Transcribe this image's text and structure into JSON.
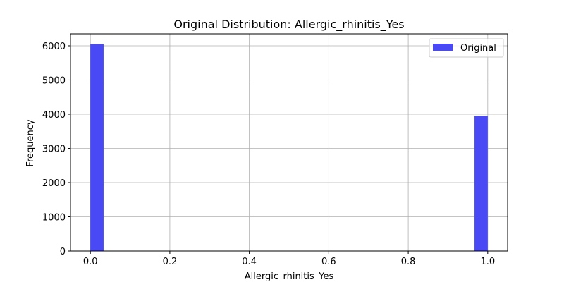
{
  "chart_data": {
    "type": "bar",
    "title": "Original Distribution: Allergic_rhinitis_Yes",
    "xlabel": "Allergic_rhinitis_Yes",
    "ylabel": "Frequency",
    "xlim": [
      -0.05,
      1.05
    ],
    "ylim": [
      0,
      6350
    ],
    "grid": true,
    "legend_position": "top-right",
    "x_ticks": [
      0.0,
      0.2,
      0.4,
      0.6,
      0.8,
      1.0
    ],
    "x_tick_labels": [
      "0.0",
      "0.2",
      "0.4",
      "0.6",
      "0.8",
      "1.0"
    ],
    "y_ticks": [
      0,
      1000,
      2000,
      3000,
      4000,
      5000,
      6000
    ],
    "y_tick_labels": [
      "0",
      "1000",
      "2000",
      "3000",
      "4000",
      "5000",
      "6000"
    ],
    "bins": [
      {
        "x_start": 0.0,
        "x_end": 0.0333,
        "value": 6050
      },
      {
        "x_start": 0.9667,
        "x_end": 1.0,
        "value": 3950
      }
    ],
    "series": [
      {
        "name": "Original",
        "color": "#4949f5"
      }
    ],
    "colors": {
      "grid": "#b0b0b0",
      "axes": "#000000",
      "legend_border": "#cccccc"
    }
  }
}
